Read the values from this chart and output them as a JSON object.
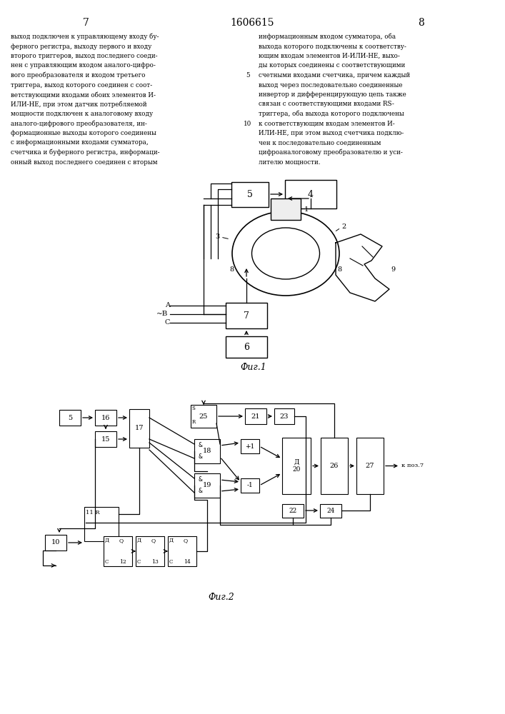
{
  "page_numbers": [
    "7",
    "8"
  ],
  "patent_number": "1606615",
  "fig1_caption": "Фиг.1",
  "fig2_caption": "Фиг.2",
  "left_lines": [
    "выход подключен к управляющему входу бу-",
    "ферного регистра, выходу первого и входу",
    "второго триггеров, выход последнего соеди-",
    "нен с управляющим входом аналого-цифро-",
    "вого преобразователя и входом третьего",
    "триггера, выход которого соединен с соот-",
    "ветствующими входами обоих элементов И-",
    "ИЛИ-НЕ, при этом датчик потребляемой",
    "мощности подключен к аналоговому входу",
    "аналого-цифрового преобразователя, ин-",
    "формационные выходы которого соединены",
    "с информационными входами сумматора,",
    "счетчика и буферного регистра, информаци-",
    "онный выход последнего соединен с вторым"
  ],
  "right_lines": [
    "информационным входом сумматора, оба",
    "выхода которого подключены к соответству-",
    "ющим входам элементов И-ИЛИ-НЕ, выхо-",
    "ды которых соединены с соответствующими",
    "счетными входами счетчика, причем каждый",
    "выход через последовательно соединенные",
    "инвертор и дифференцирующую цепь также",
    "связан с соответствующими входами RS-",
    "триггера, оба выхода которого подключены",
    "к соответствующим входам элементов И-",
    "ИЛИ-НЕ, при этом выход счетчика подклю-",
    "чен к последовательно соединенным",
    "цифроаналоговому преобразователю и уси-",
    "лителю мощности."
  ],
  "line_numbers": {
    "5": 4,
    "10": 9
  },
  "bg_color": "#ffffff",
  "line_color": "#000000",
  "text_color": "#000000"
}
